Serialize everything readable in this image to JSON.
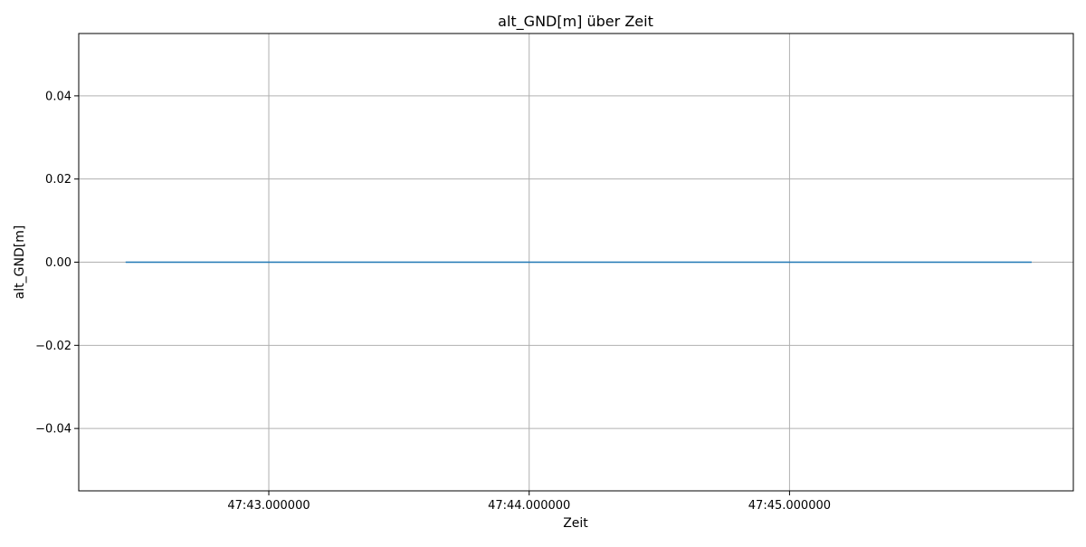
{
  "chart_data": {
    "type": "line",
    "title": "alt_GND[m] über Zeit",
    "xlabel": "Zeit",
    "ylabel": "alt_GND[m]",
    "x_ticks": [
      "47:43.000000",
      "47:44.000000",
      "47:45.000000"
    ],
    "y_ticks": [
      "−0.04",
      "−0.02",
      "0.00",
      "0.02",
      "0.04"
    ],
    "x_tick_values": [
      43.0,
      44.0,
      45.0
    ],
    "y_tick_values": [
      -0.04,
      -0.02,
      0.0,
      0.02,
      0.04
    ],
    "xlim": [
      42.27,
      46.09
    ],
    "ylim": [
      -0.055,
      0.055
    ],
    "grid": true,
    "series": [
      {
        "color": "#1f77b4",
        "x": [
          42.45,
          42.8,
          43.2,
          43.6,
          44.0,
          44.4,
          44.8,
          45.2,
          45.6,
          45.93
        ],
        "y": [
          0,
          0,
          0,
          0,
          0,
          0,
          0,
          0,
          0,
          0
        ]
      }
    ]
  }
}
